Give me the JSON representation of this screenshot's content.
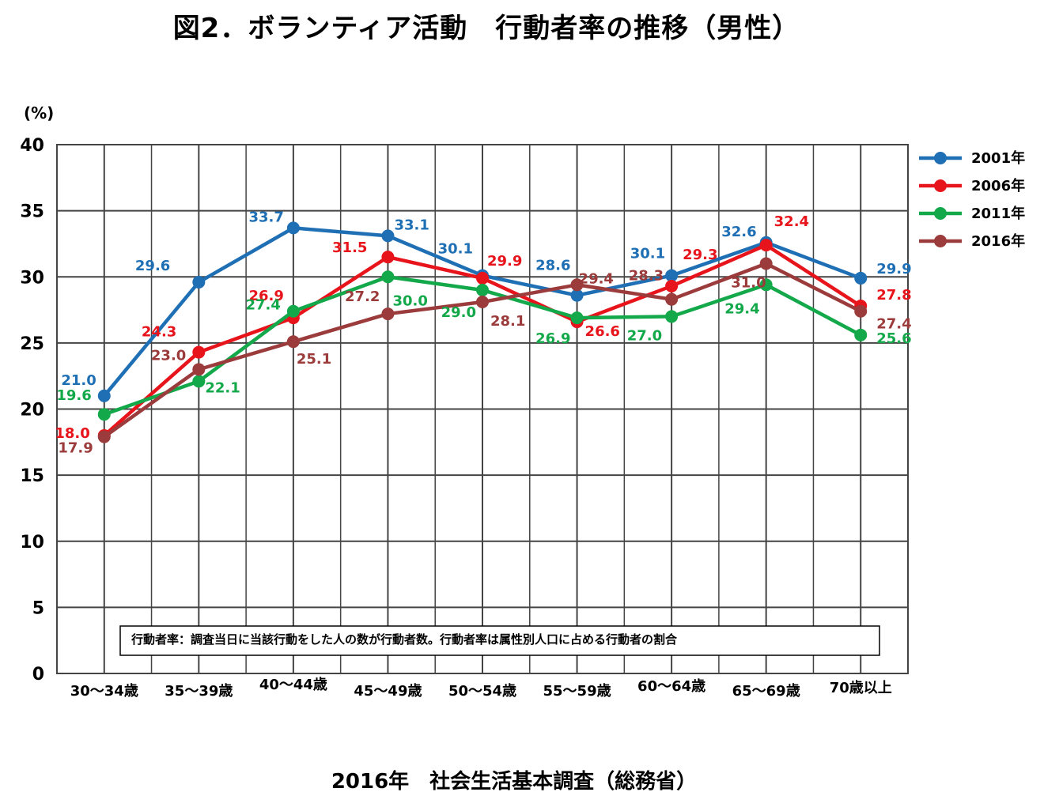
{
  "title": "図2．ボランティア活動　行動者率の推移（男性）",
  "source": "2016年　社会生活基本調査（総務省）",
  "note": "行動者率：調査当日に当該行動をした人の数が行動者数。行動者率は属性別人口に占める行動者の割合",
  "chart_data": {
    "type": "line",
    "title": "図2．ボランティア活動　行動者率の推移（男性）",
    "ylabel": "(%)",
    "xlabel": "",
    "ylim": [
      0,
      40
    ],
    "yticks": [
      0,
      5,
      10,
      15,
      20,
      25,
      30,
      35,
      40
    ],
    "grid": true,
    "legend": "top-right",
    "categories": [
      "30～34歳",
      "35～39歳",
      "40～44歳",
      "45～49歳",
      "50～54歳",
      "55～59歳",
      "60～64歳",
      "65～69歳",
      "70歳以上"
    ],
    "series": [
      {
        "name": "2001年",
        "color": "#1f6fb5",
        "values": [
          21.0,
          29.6,
          33.7,
          33.1,
          30.1,
          28.6,
          30.1,
          32.6,
          29.9
        ]
      },
      {
        "name": "2006年",
        "color": "#e8141c",
        "values": [
          18.0,
          24.3,
          26.9,
          31.5,
          29.9,
          26.6,
          29.3,
          32.4,
          27.8
        ]
      },
      {
        "name": "2011年",
        "color": "#13a84a",
        "values": [
          19.6,
          22.1,
          27.4,
          30.0,
          29.0,
          26.9,
          27.0,
          29.4,
          25.6
        ]
      },
      {
        "name": "2016年",
        "color": "#9b3b3b",
        "values": [
          17.9,
          23.0,
          25.1,
          27.2,
          28.1,
          29.4,
          28.3,
          31.0,
          27.4
        ]
      }
    ]
  }
}
